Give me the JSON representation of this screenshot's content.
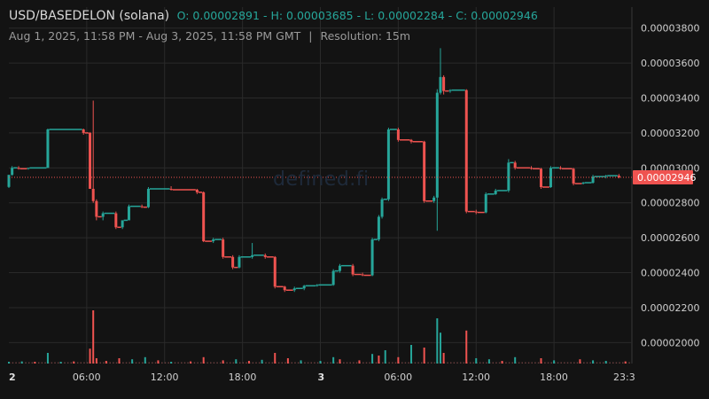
{
  "header": {
    "pair": "USD/BASEDELON (solana)",
    "open_label": "O:",
    "open": "0.00002891",
    "high_label": "H:",
    "high": "0.00003685",
    "low_label": "L:",
    "low": "0.00002284",
    "close_label": "C:",
    "close": "0.00002946",
    "range": "Aug 1, 2025, 11:58 PM - Aug 3, 2025, 11:58 PM GMT",
    "separator": "|",
    "resolution": "Resolution: 15m"
  },
  "watermark": "defined.fi",
  "colors": {
    "up": "#26a69a",
    "down": "#ef5350",
    "background": "#131313",
    "grid": "#2a2a2a",
    "last_price": "#ef5350"
  },
  "chart_data": {
    "type": "candlestick",
    "last_price": 2.946e-05,
    "last_price_label": "0.00002946",
    "ylim": [
      1.88e-05,
      3.9e-05
    ],
    "y_ticks": [
      {
        "v": 2e-05,
        "label": "0.00002000"
      },
      {
        "v": 2.2e-05,
        "label": "0.00002200"
      },
      {
        "v": 2.4e-05,
        "label": "0.00002400"
      },
      {
        "v": 2.6e-05,
        "label": "0.00002600"
      },
      {
        "v": 2.8e-05,
        "label": "0.00002800"
      },
      {
        "v": 3e-05,
        "label": "0.00003000"
      },
      {
        "v": 3.2e-05,
        "label": "0.00003200"
      },
      {
        "v": 3.4e-05,
        "label": "0.00003400"
      },
      {
        "v": 3.6e-05,
        "label": "0.00003600"
      },
      {
        "v": 3.8e-05,
        "label": "0.00003800"
      }
    ],
    "x_range_hours": [
      0,
      48
    ],
    "x_ticks": [
      {
        "h": 0,
        "label": "2",
        "bold": true
      },
      {
        "h": 6,
        "label": "06:00"
      },
      {
        "h": 12,
        "label": "12:00"
      },
      {
        "h": 18,
        "label": "18:00"
      },
      {
        "h": 24,
        "label": "3",
        "bold": true
      },
      {
        "h": 30,
        "label": "06:00"
      },
      {
        "h": 36,
        "label": "12:00"
      },
      {
        "h": 42,
        "label": "18:00"
      },
      {
        "h": 47.5,
        "label": "23:3"
      }
    ],
    "candles_note": "each candle: [hour, open, high, low, close] in units of 1e-8 USD",
    "candles": [
      [
        0.0,
        2891,
        2960,
        2885,
        2960
      ],
      [
        0.25,
        2960,
        3010,
        2955,
        3000
      ],
      [
        0.75,
        3000,
        3010,
        2990,
        2995
      ],
      [
        1.5,
        2995,
        3000,
        2990,
        3000
      ],
      [
        3.0,
        3000,
        3225,
        3000,
        3220
      ],
      [
        5.75,
        3220,
        3225,
        3190,
        3200
      ],
      [
        6.25,
        3200,
        3205,
        2880,
        2880
      ],
      [
        6.5,
        2880,
        3385,
        2800,
        2810
      ],
      [
        6.75,
        2810,
        2820,
        2700,
        2720
      ],
      [
        7.25,
        2720,
        2750,
        2700,
        2740
      ],
      [
        8.25,
        2740,
        2750,
        2650,
        2660
      ],
      [
        8.75,
        2660,
        2700,
        2650,
        2700
      ],
      [
        9.25,
        2700,
        2790,
        2700,
        2780
      ],
      [
        10.25,
        2780,
        2790,
        2770,
        2775
      ],
      [
        10.75,
        2775,
        2890,
        2770,
        2880
      ],
      [
        12.5,
        2880,
        2895,
        2870,
        2875
      ],
      [
        14.5,
        2875,
        2880,
        2850,
        2860
      ],
      [
        15.0,
        2860,
        2865,
        2575,
        2580
      ],
      [
        15.75,
        2580,
        2600,
        2570,
        2590
      ],
      [
        16.5,
        2590,
        2600,
        2480,
        2490
      ],
      [
        17.25,
        2490,
        2500,
        2420,
        2430
      ],
      [
        17.75,
        2430,
        2500,
        2425,
        2490
      ],
      [
        18.75,
        2490,
        2570,
        2480,
        2500
      ],
      [
        19.75,
        2500,
        2510,
        2480,
        2490
      ],
      [
        20.5,
        2490,
        2495,
        2310,
        2320
      ],
      [
        21.25,
        2320,
        2325,
        2290,
        2300
      ],
      [
        22.0,
        2300,
        2320,
        2290,
        2310
      ],
      [
        22.75,
        2310,
        2330,
        2300,
        2325
      ],
      [
        23.75,
        2325,
        2335,
        2320,
        2330
      ],
      [
        25.0,
        2330,
        2420,
        2325,
        2410
      ],
      [
        25.5,
        2410,
        2450,
        2400,
        2440
      ],
      [
        26.5,
        2440,
        2450,
        2380,
        2390
      ],
      [
        27.25,
        2390,
        2400,
        2380,
        2385
      ],
      [
        28.0,
        2385,
        2600,
        2380,
        2590
      ],
      [
        28.5,
        2590,
        2730,
        2580,
        2720
      ],
      [
        28.75,
        2720,
        2830,
        2710,
        2820
      ],
      [
        29.25,
        2820,
        3230,
        2810,
        3220
      ],
      [
        30.0,
        3220,
        3230,
        3150,
        3160
      ],
      [
        31.0,
        3160,
        3165,
        3140,
        3150
      ],
      [
        32.0,
        3150,
        3155,
        2800,
        2810
      ],
      [
        32.75,
        2810,
        2840,
        2800,
        2830
      ],
      [
        33.0,
        2830,
        3450,
        2640,
        3430
      ],
      [
        33.25,
        3430,
        3685,
        3420,
        3520
      ],
      [
        33.5,
        3520,
        3530,
        3420,
        3440
      ],
      [
        34.0,
        3440,
        3450,
        3430,
        3445
      ],
      [
        35.25,
        3445,
        3450,
        2740,
        2750
      ],
      [
        36.0,
        2750,
        2760,
        2735,
        2745
      ],
      [
        36.75,
        2745,
        2860,
        2740,
        2850
      ],
      [
        37.5,
        2850,
        2880,
        2845,
        2870
      ],
      [
        38.5,
        2870,
        3050,
        2860,
        3030
      ],
      [
        39.0,
        3030,
        3040,
        2990,
        3000
      ],
      [
        40.25,
        3000,
        3010,
        2990,
        2995
      ],
      [
        41.0,
        2995,
        3000,
        2880,
        2890
      ],
      [
        41.75,
        2890,
        3010,
        2885,
        3000
      ],
      [
        42.5,
        3000,
        3010,
        2990,
        2995
      ],
      [
        43.5,
        2995,
        3000,
        2900,
        2910
      ],
      [
        44.25,
        2910,
        2920,
        2905,
        2915
      ],
      [
        45.0,
        2915,
        2960,
        2910,
        2950
      ],
      [
        46.0,
        2950,
        2960,
        2940,
        2955
      ],
      [
        47.0,
        2955,
        2965,
        2940,
        2946
      ]
    ],
    "volumes_note": "relative volume 0-1, [hour, vol, up(1)/down(0)]",
    "volumes": [
      [
        0.0,
        0.03,
        1
      ],
      [
        1.0,
        0.04,
        1
      ],
      [
        2.0,
        0.03,
        0
      ],
      [
        3.0,
        0.2,
        1
      ],
      [
        4.0,
        0.03,
        1
      ],
      [
        5.0,
        0.04,
        0
      ],
      [
        6.25,
        0.28,
        0
      ],
      [
        6.5,
        1.0,
        0
      ],
      [
        6.75,
        0.1,
        0
      ],
      [
        7.5,
        0.05,
        0
      ],
      [
        8.5,
        0.1,
        0
      ],
      [
        9.5,
        0.08,
        1
      ],
      [
        10.5,
        0.12,
        1
      ],
      [
        11.5,
        0.06,
        0
      ],
      [
        12.5,
        0.03,
        1
      ],
      [
        14.0,
        0.04,
        0
      ],
      [
        15.0,
        0.12,
        0
      ],
      [
        16.5,
        0.06,
        0
      ],
      [
        17.5,
        0.08,
        1
      ],
      [
        18.5,
        0.05,
        0
      ],
      [
        19.5,
        0.07,
        1
      ],
      [
        20.5,
        0.2,
        0
      ],
      [
        21.5,
        0.1,
        0
      ],
      [
        22.5,
        0.06,
        1
      ],
      [
        24.0,
        0.05,
        1
      ],
      [
        25.0,
        0.12,
        1
      ],
      [
        25.5,
        0.08,
        0
      ],
      [
        27.0,
        0.06,
        0
      ],
      [
        28.0,
        0.18,
        1
      ],
      [
        28.5,
        0.15,
        0
      ],
      [
        29.0,
        0.25,
        1
      ],
      [
        30.0,
        0.12,
        0
      ],
      [
        31.0,
        0.35,
        1
      ],
      [
        32.0,
        0.3,
        0
      ],
      [
        33.0,
        0.85,
        1
      ],
      [
        33.25,
        0.58,
        1
      ],
      [
        33.5,
        0.2,
        0
      ],
      [
        35.25,
        0.62,
        0
      ],
      [
        36.0,
        0.1,
        1
      ],
      [
        37.0,
        0.08,
        1
      ],
      [
        38.0,
        0.05,
        0
      ],
      [
        39.0,
        0.12,
        1
      ],
      [
        41.0,
        0.1,
        0
      ],
      [
        42.0,
        0.06,
        1
      ],
      [
        44.0,
        0.08,
        0
      ],
      [
        45.0,
        0.06,
        1
      ],
      [
        46.0,
        0.05,
        1
      ],
      [
        47.5,
        0.04,
        0
      ]
    ]
  }
}
